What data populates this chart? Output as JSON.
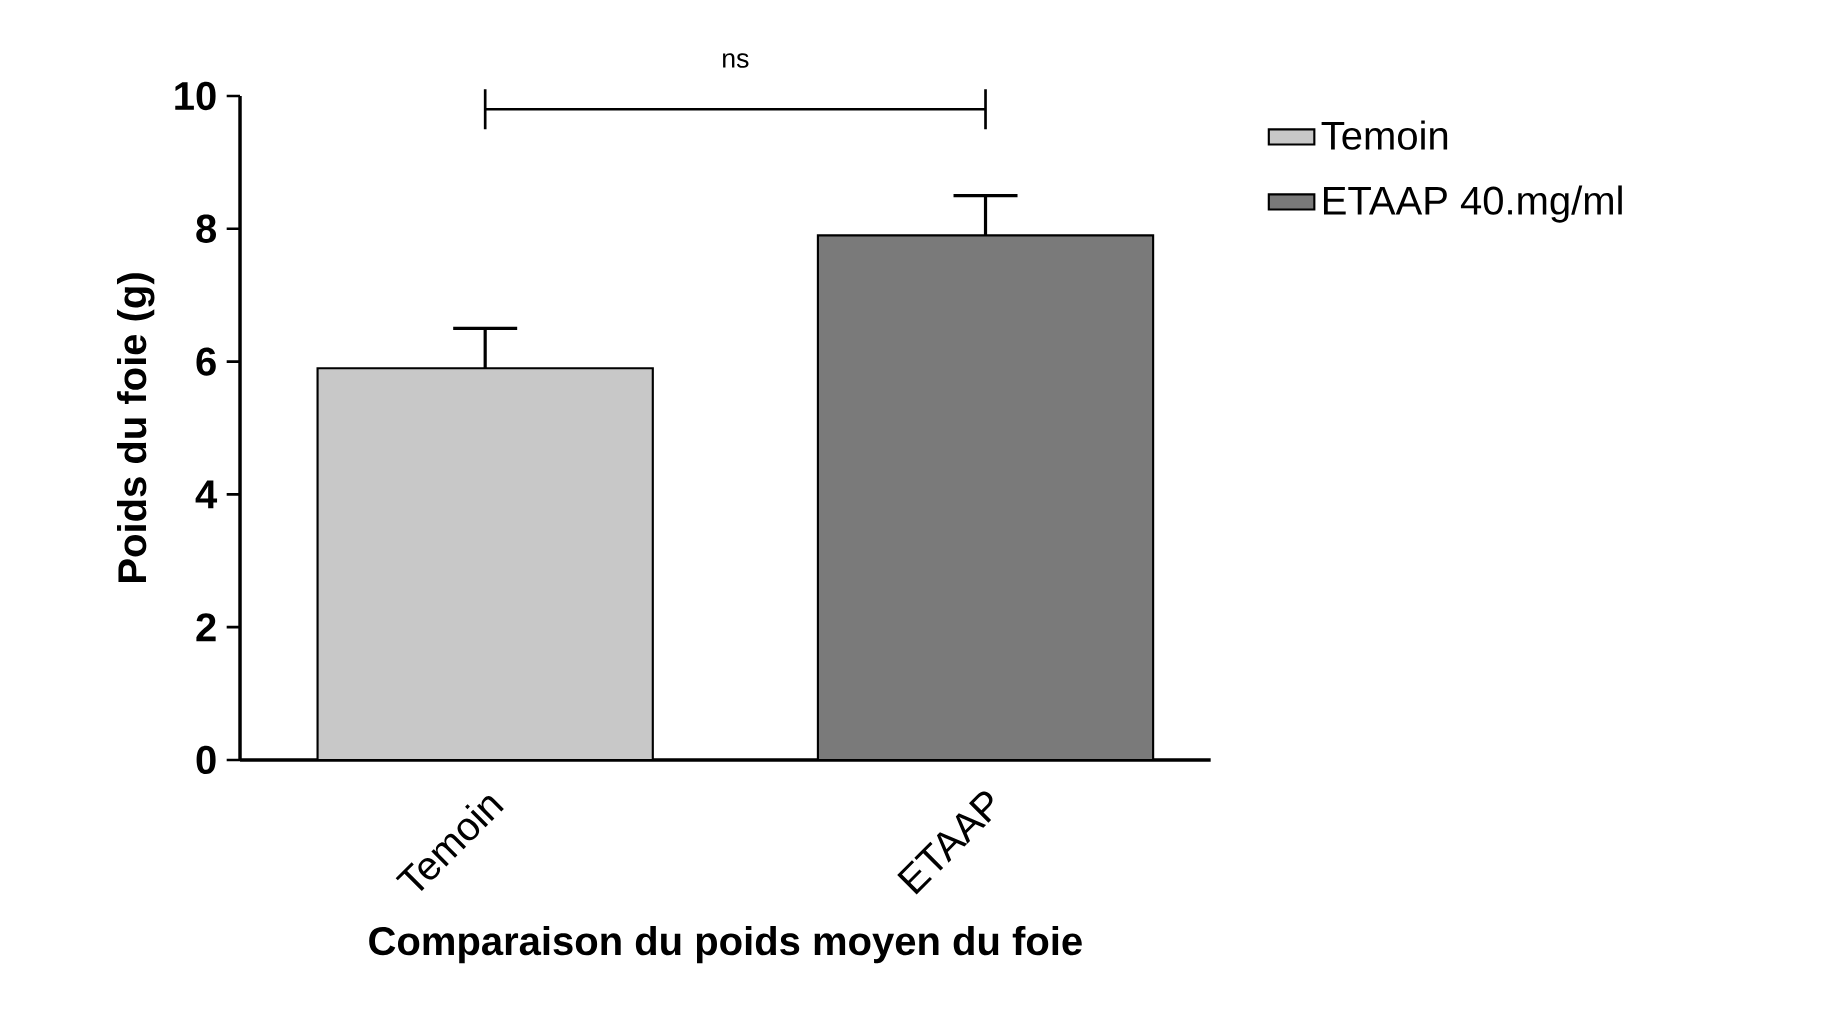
{
  "chart_data": {
    "type": "bar",
    "xlabel": "Comparaison du poids moyen du foie",
    "ylabel": "Poids du foie (g)",
    "categories": [
      "Temoin",
      "ETAAP"
    ],
    "series": [
      {
        "name": "Temoin",
        "color": "#c8c8c8",
        "values": [
          5.9,
          null
        ],
        "errors": [
          0.6,
          null
        ]
      },
      {
        "name": "ETAAP 40.mg/ml",
        "color": "#7a7a7a",
        "values": [
          null,
          7.9
        ],
        "errors": [
          null,
          0.6
        ]
      }
    ],
    "ylim": [
      0,
      10
    ],
    "yticks": [
      0,
      2,
      4,
      6,
      8,
      10
    ],
    "grid": false,
    "legend": "top right",
    "annotations": [
      "ns"
    ]
  }
}
